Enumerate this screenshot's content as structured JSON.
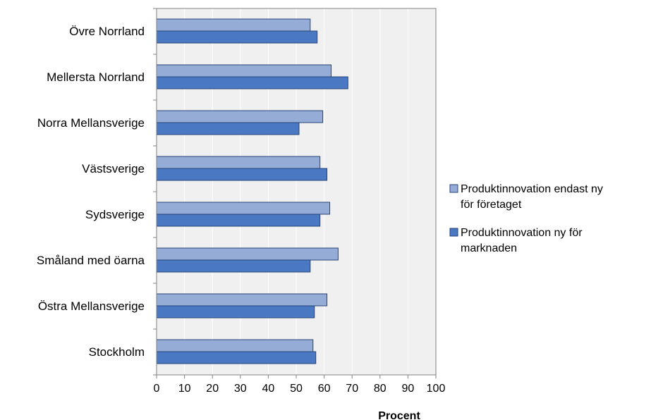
{
  "chart_data": {
    "type": "bar",
    "orientation": "horizontal",
    "categories": [
      "Övre Norrland",
      "Mellersta Norrland",
      "Norra Mellansverige",
      "Västsverige",
      "Sydsverige",
      "Småland med öarna",
      "Östra Mellansverige",
      "Stockholm"
    ],
    "series": [
      {
        "name": "Produktinnovation endast ny för företaget",
        "legend_lines": [
          "Produktinnovation endast ny",
          "för företaget"
        ],
        "color": "#95acd6",
        "values": [
          55,
          62.5,
          59.5,
          58.5,
          62,
          65,
          61,
          56
        ]
      },
      {
        "name": "Produktinnovation ny för marknaden",
        "legend_lines": [
          "Produktinnovation ny för",
          "marknaden"
        ],
        "color": "#4a78c2",
        "values": [
          57.5,
          68.5,
          51,
          61,
          58.5,
          55,
          56.5,
          57
        ]
      }
    ],
    "xlim": [
      0,
      100
    ],
    "xticks": [
      "0",
      "10",
      "20",
      "30",
      "40",
      "50",
      "60",
      "70",
      "80",
      "90",
      "100"
    ],
    "xlabel": "Procent",
    "ylabel": "",
    "title": "",
    "grid": true,
    "legend_position": "right",
    "colors": {
      "plot_background": "#f0f0f0",
      "gridline": "#ffffff",
      "axis": "#808080",
      "bar_border": "#26437a"
    }
  }
}
